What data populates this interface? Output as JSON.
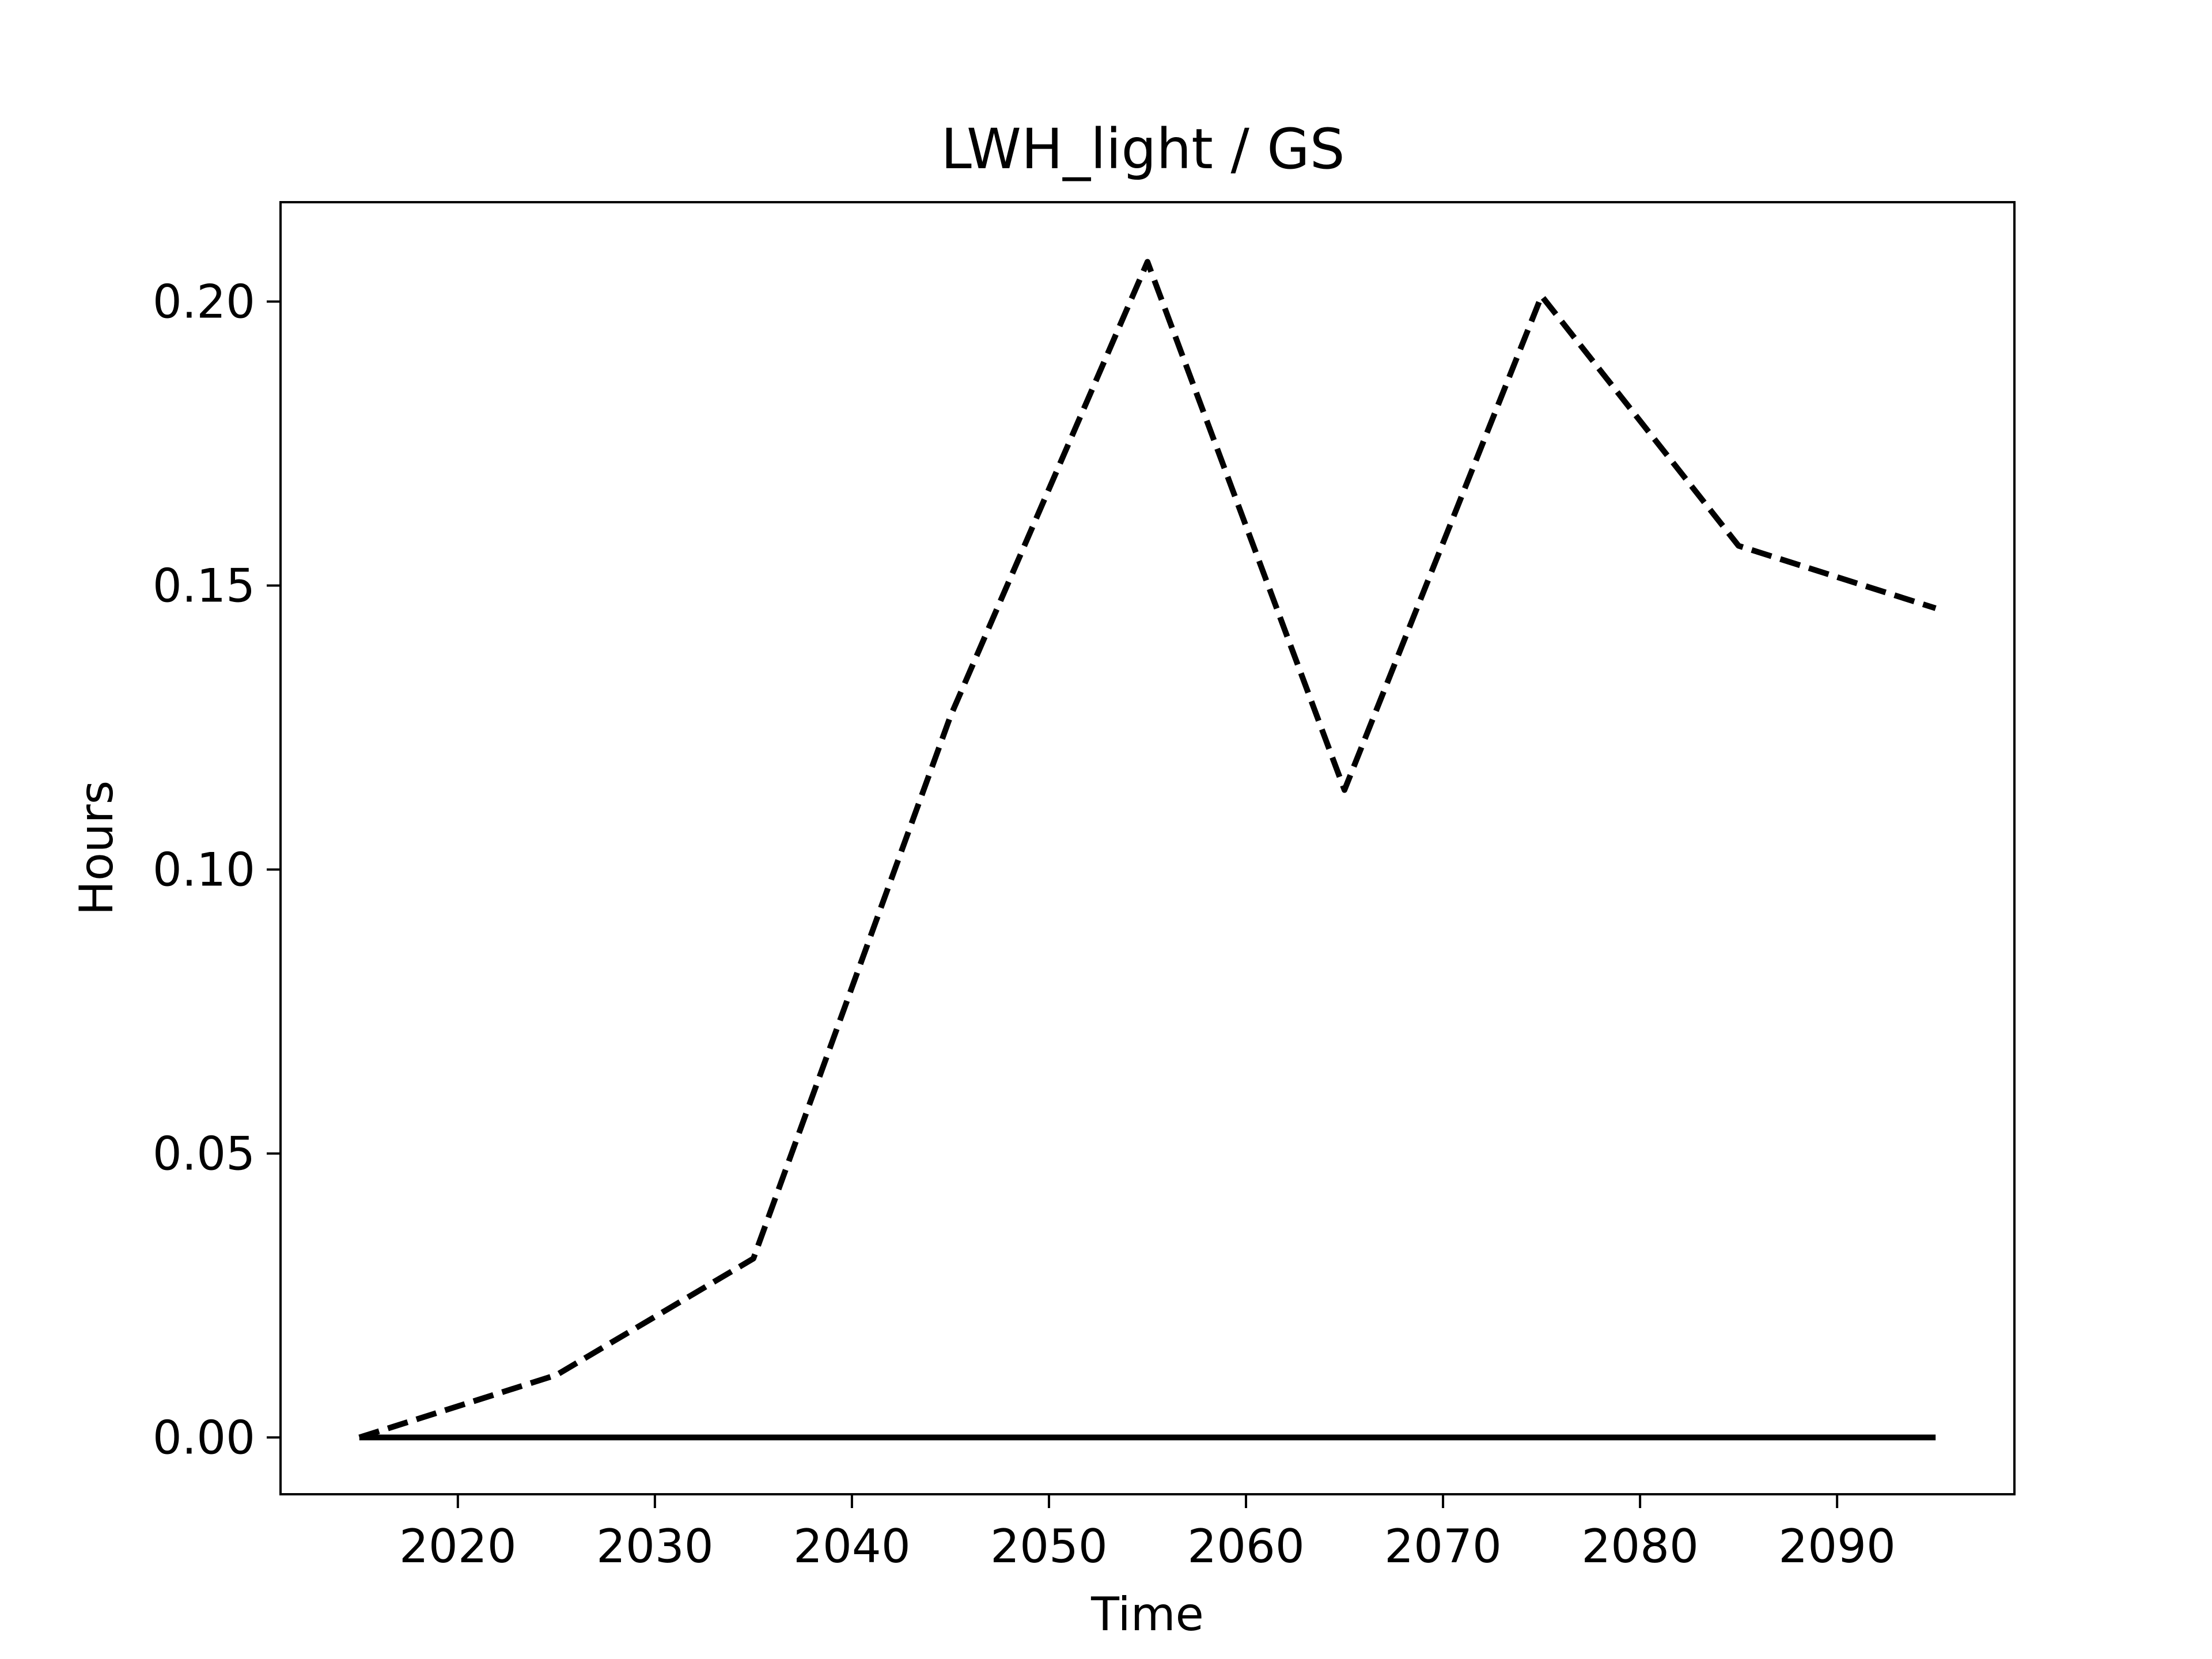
{
  "chart_data": {
    "type": "line",
    "title": "LWH_light / GS",
    "xlabel": "Time",
    "ylabel": "Hours",
    "xlim": [
      2011,
      2099
    ],
    "ylim": [
      -0.01,
      0.2175
    ],
    "x_ticks": [
      2020,
      2030,
      2040,
      2050,
      2060,
      2070,
      2080,
      2090
    ],
    "y_ticks": [
      0.0,
      0.05,
      0.1,
      0.15,
      0.2
    ],
    "y_tick_labels": [
      "0.00",
      "0.05",
      "0.10",
      "0.15",
      "0.20"
    ],
    "x": [
      2015,
      2025,
      2035,
      2045,
      2055,
      2065,
      2075,
      2085,
      2095
    ],
    "series": [
      {
        "style": "dashed",
        "color": "#000000",
        "values": [
          0.0,
          0.011,
          0.0315,
          0.127,
          0.207,
          0.114,
          0.201,
          0.157,
          0.146
        ]
      },
      {
        "style": "solid",
        "color": "#000000",
        "values": [
          0.0,
          0.0,
          0.0,
          0.0,
          0.0,
          0.0,
          0.0,
          0.0,
          0.0
        ]
      }
    ],
    "grid": false,
    "legend": false
  }
}
